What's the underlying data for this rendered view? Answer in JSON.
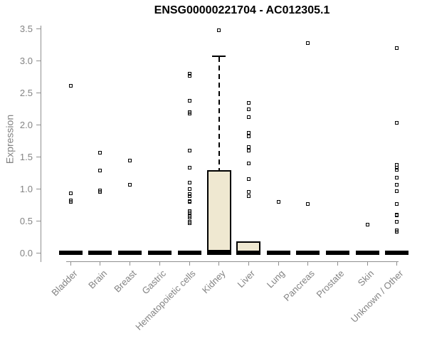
{
  "chart_data": {
    "type": "boxplot",
    "title": "ENSG00000221704 - AC012305.1",
    "ylabel": "Expression",
    "xlabel": "",
    "ylim": [
      0,
      3.5
    ],
    "y_ticks": [
      "0.0",
      "0.5",
      "1.0",
      "1.5",
      "2.0",
      "2.5",
      "3.0",
      "3.5"
    ],
    "grid": false,
    "legend": false,
    "point_marker": "open-square",
    "categories": [
      {
        "label": "Bladder",
        "box": {
          "q1": 0,
          "median": 0,
          "q3": 0
        },
        "points": [
          2.61,
          0.93,
          0.82,
          0.79
        ]
      },
      {
        "label": "Brain",
        "box": {
          "q1": 0,
          "median": 0,
          "q3": 0
        },
        "points": [
          1.56,
          1.28,
          0.97,
          0.95
        ]
      },
      {
        "label": "Breast",
        "box": {
          "q1": 0,
          "median": 0,
          "q3": 0
        },
        "points": [
          1.44,
          1.06
        ]
      },
      {
        "label": "Gastric",
        "box": {
          "q1": 0,
          "median": 0,
          "q3": 0
        },
        "points": []
      },
      {
        "label": "Hematopoietic cells",
        "box": {
          "q1": 0,
          "median": 0,
          "q3": 0
        },
        "points": [
          2.79,
          2.76,
          2.37,
          2.19,
          2.17,
          1.6,
          1.33,
          1.09,
          0.99,
          0.92,
          0.88,
          0.81,
          0.79,
          0.65,
          0.63,
          0.57,
          0.55,
          0.48,
          0.46
        ]
      },
      {
        "label": "Kidney",
        "box": {
          "q1": 0.02,
          "median": 0,
          "q3": 1.29,
          "whisker_high": 3.07
        },
        "points": [
          3.47
        ]
      },
      {
        "label": "Liver",
        "box": {
          "q1": 0,
          "median": 0,
          "q3": 0.18
        },
        "points": [
          2.34,
          2.24,
          2.12,
          1.87,
          1.82,
          1.65,
          1.6,
          1.4,
          1.15,
          0.95,
          0.88
        ]
      },
      {
        "label": "Lung",
        "box": {
          "q1": 0,
          "median": 0,
          "q3": 0
        },
        "points": [
          0.79
        ]
      },
      {
        "label": "Pancreas",
        "box": {
          "q1": 0,
          "median": 0,
          "q3": 0
        },
        "points": [
          3.27,
          0.76
        ]
      },
      {
        "label": "Prostate",
        "box": {
          "q1": 0,
          "median": 0,
          "q3": 0
        },
        "points": []
      },
      {
        "label": "Skin",
        "box": {
          "q1": 0,
          "median": 0,
          "q3": 0
        },
        "points": [
          0.44
        ]
      },
      {
        "label": "Unknown / Other",
        "box": {
          "q1": 0,
          "median": 0,
          "q3": 0
        },
        "points": [
          3.2,
          2.03,
          1.37,
          1.33,
          1.29,
          1.17,
          1.06,
          0.96,
          0.76,
          0.6,
          0.58,
          0.48,
          0.35,
          0.33
        ]
      }
    ],
    "colors": {
      "box_fill": "#EFE8D1",
      "box_border": "#000000",
      "median": "#000000",
      "point": "#000000",
      "axis": "#8F8F8F",
      "tick_label": "#838383",
      "title": "#000000",
      "background": "#FFFFFF"
    }
  }
}
